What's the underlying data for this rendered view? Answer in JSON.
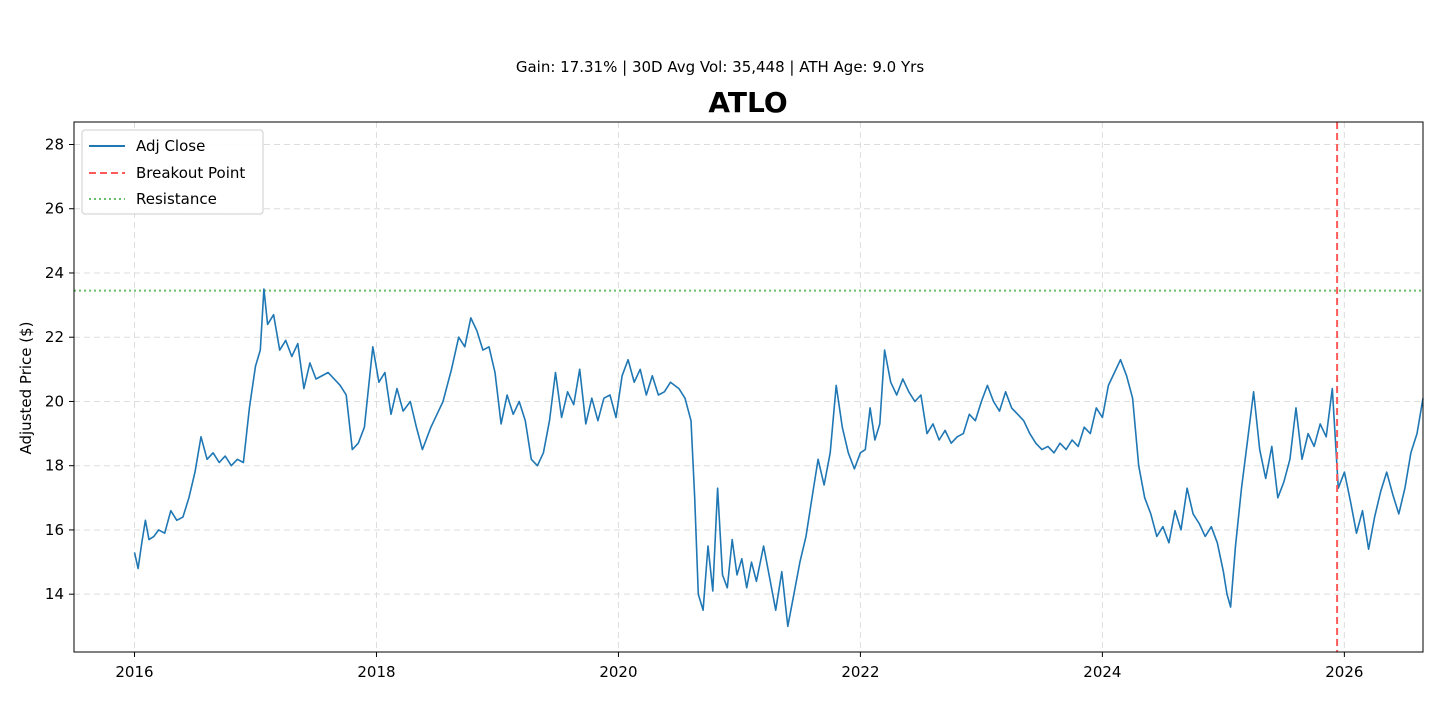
{
  "chart_data": {
    "type": "line",
    "subtitle": "Gain: 17.31% | 30D Avg Vol: 35,448 | ATH Age: 9.0 Yrs",
    "title": "ATLO",
    "xlabel": "",
    "ylabel": "Adjusted Price ($)",
    "xlim": [
      2015.5,
      2026.65
    ],
    "ylim": [
      12.2,
      28.7
    ],
    "x_ticks": [
      2016,
      2018,
      2020,
      2022,
      2024,
      2026
    ],
    "x_tick_labels": [
      "2016",
      "2018",
      "2020",
      "2022",
      "2024",
      "2026"
    ],
    "y_ticks": [
      14,
      16,
      18,
      20,
      22,
      24,
      26,
      28
    ],
    "y_tick_labels": [
      "14",
      "16",
      "18",
      "20",
      "22",
      "24",
      "26",
      "28"
    ],
    "grid": true,
    "legend_position": "top-left",
    "colors": {
      "adj_close": "#1f77b4",
      "breakout": "#ff5a5a",
      "resistance": "#6abf69",
      "grid": "#dddddd"
    },
    "series": [
      {
        "name": "Adj Close",
        "style": "solid",
        "points": [
          [
            2016.0,
            15.3
          ],
          [
            2016.03,
            14.8
          ],
          [
            2016.06,
            15.6
          ],
          [
            2016.09,
            16.3
          ],
          [
            2016.12,
            15.7
          ],
          [
            2016.16,
            15.8
          ],
          [
            2016.2,
            16.0
          ],
          [
            2016.25,
            15.9
          ],
          [
            2016.3,
            16.6
          ],
          [
            2016.35,
            16.3
          ],
          [
            2016.4,
            16.4
          ],
          [
            2016.45,
            17.0
          ],
          [
            2016.5,
            17.8
          ],
          [
            2016.55,
            18.9
          ],
          [
            2016.6,
            18.2
          ],
          [
            2016.65,
            18.4
          ],
          [
            2016.7,
            18.1
          ],
          [
            2016.75,
            18.3
          ],
          [
            2016.8,
            18.0
          ],
          [
            2016.85,
            18.2
          ],
          [
            2016.9,
            18.1
          ],
          [
            2016.95,
            19.8
          ],
          [
            2017.0,
            21.1
          ],
          [
            2017.04,
            21.6
          ],
          [
            2017.07,
            23.5
          ],
          [
            2017.1,
            22.4
          ],
          [
            2017.15,
            22.7
          ],
          [
            2017.2,
            21.6
          ],
          [
            2017.25,
            21.9
          ],
          [
            2017.3,
            21.4
          ],
          [
            2017.35,
            21.8
          ],
          [
            2017.4,
            20.4
          ],
          [
            2017.45,
            21.2
          ],
          [
            2017.5,
            20.7
          ],
          [
            2017.6,
            20.9
          ],
          [
            2017.7,
            20.5
          ],
          [
            2017.75,
            20.2
          ],
          [
            2017.8,
            18.5
          ],
          [
            2017.85,
            18.7
          ],
          [
            2017.9,
            19.2
          ],
          [
            2017.97,
            21.7
          ],
          [
            2018.02,
            20.6
          ],
          [
            2018.07,
            20.9
          ],
          [
            2018.12,
            19.6
          ],
          [
            2018.17,
            20.4
          ],
          [
            2018.22,
            19.7
          ],
          [
            2018.28,
            20.0
          ],
          [
            2018.33,
            19.2
          ],
          [
            2018.38,
            18.5
          ],
          [
            2018.45,
            19.2
          ],
          [
            2018.5,
            19.6
          ],
          [
            2018.55,
            20.0
          ],
          [
            2018.62,
            21.0
          ],
          [
            2018.68,
            22.0
          ],
          [
            2018.73,
            21.7
          ],
          [
            2018.78,
            22.6
          ],
          [
            2018.83,
            22.2
          ],
          [
            2018.88,
            21.6
          ],
          [
            2018.93,
            21.7
          ],
          [
            2018.98,
            20.9
          ],
          [
            2019.03,
            19.3
          ],
          [
            2019.08,
            20.2
          ],
          [
            2019.13,
            19.6
          ],
          [
            2019.18,
            20.0
          ],
          [
            2019.23,
            19.4
          ],
          [
            2019.28,
            18.2
          ],
          [
            2019.33,
            18.0
          ],
          [
            2019.38,
            18.4
          ],
          [
            2019.43,
            19.4
          ],
          [
            2019.48,
            20.9
          ],
          [
            2019.53,
            19.5
          ],
          [
            2019.58,
            20.3
          ],
          [
            2019.63,
            19.9
          ],
          [
            2019.68,
            21.0
          ],
          [
            2019.73,
            19.3
          ],
          [
            2019.78,
            20.1
          ],
          [
            2019.83,
            19.4
          ],
          [
            2019.88,
            20.1
          ],
          [
            2019.93,
            20.2
          ],
          [
            2019.98,
            19.5
          ],
          [
            2020.03,
            20.8
          ],
          [
            2020.08,
            21.3
          ],
          [
            2020.13,
            20.6
          ],
          [
            2020.18,
            21.0
          ],
          [
            2020.23,
            20.2
          ],
          [
            2020.28,
            20.8
          ],
          [
            2020.33,
            20.2
          ],
          [
            2020.38,
            20.3
          ],
          [
            2020.43,
            20.6
          ],
          [
            2020.5,
            20.4
          ],
          [
            2020.55,
            20.1
          ],
          [
            2020.6,
            19.4
          ],
          [
            2020.63,
            17.0
          ],
          [
            2020.66,
            14.0
          ],
          [
            2020.7,
            13.5
          ],
          [
            2020.74,
            15.5
          ],
          [
            2020.78,
            14.1
          ],
          [
            2020.82,
            17.3
          ],
          [
            2020.86,
            14.6
          ],
          [
            2020.9,
            14.2
          ],
          [
            2020.94,
            15.7
          ],
          [
            2020.98,
            14.6
          ],
          [
            2021.02,
            15.1
          ],
          [
            2021.06,
            14.2
          ],
          [
            2021.1,
            15.0
          ],
          [
            2021.14,
            14.4
          ],
          [
            2021.2,
            15.5
          ],
          [
            2021.25,
            14.5
          ],
          [
            2021.3,
            13.5
          ],
          [
            2021.35,
            14.7
          ],
          [
            2021.4,
            13.0
          ],
          [
            2021.45,
            14.0
          ],
          [
            2021.5,
            15.0
          ],
          [
            2021.55,
            15.8
          ],
          [
            2021.6,
            17.0
          ],
          [
            2021.65,
            18.2
          ],
          [
            2021.7,
            17.4
          ],
          [
            2021.75,
            18.4
          ],
          [
            2021.8,
            20.5
          ],
          [
            2021.85,
            19.2
          ],
          [
            2021.9,
            18.4
          ],
          [
            2021.95,
            17.9
          ],
          [
            2022.0,
            18.4
          ],
          [
            2022.04,
            18.5
          ],
          [
            2022.08,
            19.8
          ],
          [
            2022.12,
            18.8
          ],
          [
            2022.16,
            19.3
          ],
          [
            2022.2,
            21.6
          ],
          [
            2022.25,
            20.6
          ],
          [
            2022.3,
            20.2
          ],
          [
            2022.35,
            20.7
          ],
          [
            2022.4,
            20.3
          ],
          [
            2022.45,
            20.0
          ],
          [
            2022.5,
            20.2
          ],
          [
            2022.55,
            19.0
          ],
          [
            2022.6,
            19.3
          ],
          [
            2022.65,
            18.8
          ],
          [
            2022.7,
            19.1
          ],
          [
            2022.75,
            18.7
          ],
          [
            2022.8,
            18.9
          ],
          [
            2022.85,
            19.0
          ],
          [
            2022.9,
            19.6
          ],
          [
            2022.95,
            19.4
          ],
          [
            2023.0,
            20.0
          ],
          [
            2023.05,
            20.5
          ],
          [
            2023.1,
            20.0
          ],
          [
            2023.15,
            19.7
          ],
          [
            2023.2,
            20.3
          ],
          [
            2023.25,
            19.8
          ],
          [
            2023.3,
            19.6
          ],
          [
            2023.35,
            19.4
          ],
          [
            2023.4,
            19.0
          ],
          [
            2023.45,
            18.7
          ],
          [
            2023.5,
            18.5
          ],
          [
            2023.55,
            18.6
          ],
          [
            2023.6,
            18.4
          ],
          [
            2023.65,
            18.7
          ],
          [
            2023.7,
            18.5
          ],
          [
            2023.75,
            18.8
          ],
          [
            2023.8,
            18.6
          ],
          [
            2023.85,
            19.2
          ],
          [
            2023.9,
            19.0
          ],
          [
            2023.95,
            19.8
          ],
          [
            2024.0,
            19.5
          ],
          [
            2024.05,
            20.5
          ],
          [
            2024.1,
            20.9
          ],
          [
            2024.15,
            21.3
          ],
          [
            2024.2,
            20.8
          ],
          [
            2024.25,
            20.1
          ],
          [
            2024.3,
            18.0
          ],
          [
            2024.35,
            17.0
          ],
          [
            2024.4,
            16.5
          ],
          [
            2024.45,
            15.8
          ],
          [
            2024.5,
            16.1
          ],
          [
            2024.55,
            15.6
          ],
          [
            2024.6,
            16.6
          ],
          [
            2024.65,
            16.0
          ],
          [
            2024.7,
            17.3
          ],
          [
            2024.75,
            16.5
          ],
          [
            2024.8,
            16.2
          ],
          [
            2024.85,
            15.8
          ],
          [
            2024.9,
            16.1
          ],
          [
            2024.95,
            15.6
          ],
          [
            2025.0,
            14.7
          ],
          [
            2025.03,
            14.0
          ],
          [
            2025.06,
            13.6
          ],
          [
            2025.1,
            15.5
          ],
          [
            2025.15,
            17.3
          ],
          [
            2025.2,
            18.8
          ],
          [
            2025.25,
            20.3
          ],
          [
            2025.3,
            18.5
          ],
          [
            2025.35,
            17.6
          ],
          [
            2025.4,
            18.6
          ],
          [
            2025.45,
            17.0
          ],
          [
            2025.5,
            17.5
          ],
          [
            2025.55,
            18.2
          ],
          [
            2025.6,
            19.8
          ],
          [
            2025.65,
            18.2
          ],
          [
            2025.7,
            19.0
          ],
          [
            2025.75,
            18.6
          ],
          [
            2025.8,
            19.3
          ],
          [
            2025.85,
            18.9
          ],
          [
            2025.9,
            20.4
          ],
          [
            2025.95,
            17.3
          ],
          [
            2026.0,
            17.8
          ],
          [
            2026.05,
            16.9
          ],
          [
            2026.1,
            15.9
          ],
          [
            2026.15,
            16.6
          ],
          [
            2026.2,
            15.4
          ],
          [
            2026.25,
            16.4
          ],
          [
            2026.3,
            17.2
          ],
          [
            2026.35,
            17.8
          ],
          [
            2026.4,
            17.1
          ],
          [
            2026.45,
            16.5
          ],
          [
            2026.5,
            17.3
          ],
          [
            2026.55,
            18.4
          ],
          [
            2026.6,
            19.0
          ],
          [
            2026.65,
            20.1
          ]
        ]
      },
      {
        "name": "Breakout Point",
        "style": "dashed",
        "x": 2025.94
      },
      {
        "name": "Resistance",
        "style": "dotted",
        "y": 23.45
      }
    ]
  }
}
